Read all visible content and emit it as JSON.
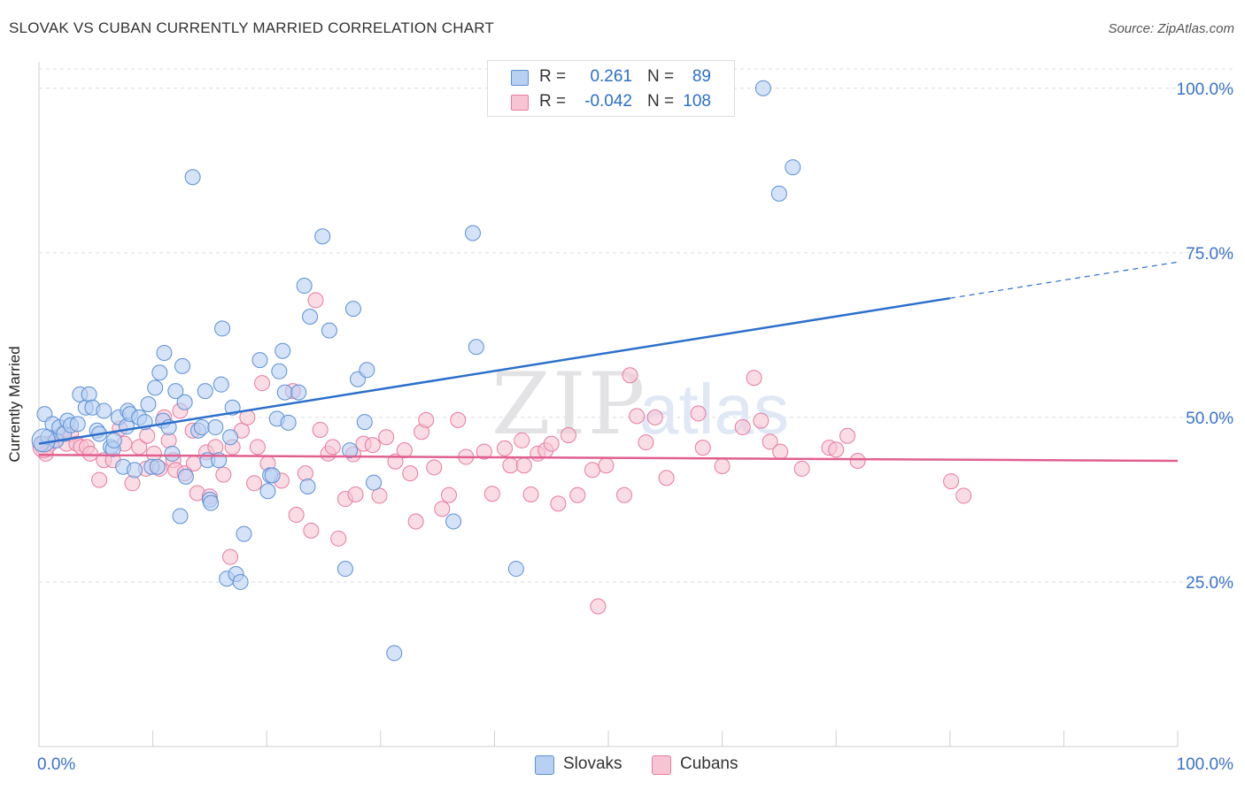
{
  "title": "SLOVAK VS CUBAN CURRENTLY MARRIED CORRELATION CHART",
  "source": "Source: ZipAtlas.com",
  "watermark": {
    "zip": "ZIP",
    "atlas": "atlas"
  },
  "legend": {
    "rows": [
      {
        "r_label": "R =",
        "r_value": "0.261",
        "n_label": "N =",
        "n_value": "89",
        "color": "#5b8fd6",
        "fill": "#b8d0f2"
      },
      {
        "r_label": "R =",
        "r_value": "-0.042",
        "n_label": "N =",
        "n_value": "108",
        "color": "#e87aa0",
        "fill": "#f7c4d4"
      }
    ]
  },
  "bottom_legend": [
    {
      "label": "Slovaks",
      "fill": "#b8d0f2",
      "color": "#5b8fd6"
    },
    {
      "label": "Cubans",
      "fill": "#f7c4d4",
      "color": "#e87aa0"
    }
  ],
  "chart_data": {
    "type": "scatter",
    "title": "SLOVAK VS CUBAN CURRENTLY MARRIED CORRELATION CHART",
    "xlabel": "",
    "ylabel": "Currently Married",
    "xlim": [
      0,
      100
    ],
    "ylim": [
      0,
      104
    ],
    "x_tick_labels": [
      "0.0%",
      "100.0%"
    ],
    "y_ticks": [
      25,
      50,
      75,
      100
    ],
    "y_tick_labels": [
      "25.0%",
      "50.0%",
      "75.0%",
      "100.0%"
    ],
    "grid": true,
    "legend_position": "top-center",
    "series": [
      {
        "name": "Slovaks",
        "color": "#5b8fd6",
        "fill": "#b8d0f2",
        "line_color": "#2b6fcb",
        "trend": {
          "x0": 0,
          "y0": 46,
          "x1": 80,
          "y1": 68.1,
          "dashed_to_x": 100,
          "dashed_to_y": 73.6
        },
        "points": [
          [
            0.2,
            46
          ],
          [
            0.5,
            50.5
          ],
          [
            0.8,
            47
          ],
          [
            1.2,
            49
          ],
          [
            1.5,
            46.5
          ],
          [
            1.8,
            48.5
          ],
          [
            2.2,
            47.5
          ],
          [
            2.5,
            49.5
          ],
          [
            2.8,
            48.8
          ],
          [
            3.4,
            49
          ],
          [
            3.6,
            53.5
          ],
          [
            4.1,
            51.5
          ],
          [
            4.4,
            53.5
          ],
          [
            4.7,
            51.5
          ],
          [
            5.1,
            48
          ],
          [
            5.3,
            47.5
          ],
          [
            5.7,
            51
          ],
          [
            6.3,
            45.5
          ],
          [
            6.5,
            45.2
          ],
          [
            6.6,
            46.5
          ],
          [
            7.0,
            50
          ],
          [
            7.4,
            42.5
          ],
          [
            7.7,
            48.6
          ],
          [
            7.8,
            51
          ],
          [
            8.0,
            50.5
          ],
          [
            8.4,
            42
          ],
          [
            8.8,
            50
          ],
          [
            9.3,
            49.3
          ],
          [
            9.6,
            52
          ],
          [
            9.9,
            42.5
          ],
          [
            10.2,
            54.5
          ],
          [
            10.4,
            42.5
          ],
          [
            10.6,
            56.8
          ],
          [
            10.9,
            49.5
          ],
          [
            11.0,
            59.8
          ],
          [
            11.4,
            48.5
          ],
          [
            11.7,
            44.5
          ],
          [
            12.0,
            54
          ],
          [
            12.4,
            35
          ],
          [
            12.6,
            57.8
          ],
          [
            12.8,
            52.3
          ],
          [
            12.9,
            41
          ],
          [
            13.5,
            86.5
          ],
          [
            14.0,
            48
          ],
          [
            14.3,
            48.5
          ],
          [
            14.6,
            54
          ],
          [
            14.8,
            43.5
          ],
          [
            15.0,
            37.5
          ],
          [
            15.1,
            37
          ],
          [
            15.5,
            48.5
          ],
          [
            15.8,
            43.5
          ],
          [
            16.0,
            55
          ],
          [
            16.1,
            63.5
          ],
          [
            16.5,
            25.5
          ],
          [
            16.8,
            47
          ],
          [
            17.0,
            51.5
          ],
          [
            17.3,
            26.2
          ],
          [
            17.7,
            25
          ],
          [
            18.0,
            32.3
          ],
          [
            19.4,
            58.7
          ],
          [
            20.1,
            38.8
          ],
          [
            20.3,
            41.2
          ],
          [
            20.5,
            41.2
          ],
          [
            20.9,
            49.8
          ],
          [
            21.1,
            57
          ],
          [
            21.4,
            60.1
          ],
          [
            21.6,
            53.8
          ],
          [
            21.9,
            49.2
          ],
          [
            22.8,
            53.8
          ],
          [
            23.3,
            70
          ],
          [
            23.6,
            39.5
          ],
          [
            23.8,
            65.3
          ],
          [
            24.9,
            77.5
          ],
          [
            25.5,
            63.2
          ],
          [
            26.9,
            27
          ],
          [
            27.3,
            45
          ],
          [
            27.6,
            66.5
          ],
          [
            28.0,
            55.8
          ],
          [
            28.6,
            49.3
          ],
          [
            28.8,
            57.2
          ],
          [
            29.4,
            40.1
          ],
          [
            31.2,
            14.2
          ],
          [
            36.4,
            34.2
          ],
          [
            38.1,
            78
          ],
          [
            38.4,
            60.7
          ],
          [
            41.9,
            27
          ],
          [
            65.0,
            84
          ],
          [
            66.2,
            88
          ],
          [
            63.6,
            100
          ]
        ]
      },
      {
        "name": "Cubans",
        "color": "#e87aa0",
        "fill": "#f7c4d4",
        "line_color": "#e0608f",
        "trend": {
          "x0": 0,
          "y0": 44.3,
          "x1": 100,
          "y1": 43.4
        },
        "points": [
          [
            0.3,
            45.5
          ],
          [
            0.6,
            44.5
          ],
          [
            1.0,
            46
          ],
          [
            1.5,
            46.5
          ],
          [
            2.0,
            47.5
          ],
          [
            2.4,
            46
          ],
          [
            2.8,
            47.5
          ],
          [
            3.3,
            46
          ],
          [
            3.7,
            45.5
          ],
          [
            4.2,
            45.5
          ],
          [
            4.5,
            44.5
          ],
          [
            5.3,
            40.5
          ],
          [
            5.7,
            43.5
          ],
          [
            6.5,
            43.5
          ],
          [
            7.1,
            48.3
          ],
          [
            7.5,
            46
          ],
          [
            8.2,
            40
          ],
          [
            8.8,
            45.5
          ],
          [
            9.4,
            42.2
          ],
          [
            9.5,
            47.2
          ],
          [
            10.1,
            44.5
          ],
          [
            10.6,
            42.2
          ],
          [
            11.0,
            50
          ],
          [
            11.4,
            46.5
          ],
          [
            11.8,
            43.5
          ],
          [
            12.0,
            42
          ],
          [
            12.4,
            51
          ],
          [
            12.8,
            41.5
          ],
          [
            13.5,
            48
          ],
          [
            13.6,
            43
          ],
          [
            13.9,
            38.5
          ],
          [
            14.7,
            44.7
          ],
          [
            15.0,
            38
          ],
          [
            15.5,
            45.5
          ],
          [
            16.2,
            41.3
          ],
          [
            16.8,
            28.8
          ],
          [
            17.0,
            45.5
          ],
          [
            17.8,
            48
          ],
          [
            18.3,
            50
          ],
          [
            18.9,
            40
          ],
          [
            19.2,
            45.5
          ],
          [
            19.6,
            55.2
          ],
          [
            20.1,
            43
          ],
          [
            21.3,
            40.4
          ],
          [
            22.3,
            54
          ],
          [
            22.6,
            35.2
          ],
          [
            23.4,
            41.5
          ],
          [
            23.9,
            32.8
          ],
          [
            24.3,
            67.8
          ],
          [
            24.7,
            48.1
          ],
          [
            25.4,
            44.5
          ],
          [
            25.8,
            45.5
          ],
          [
            26.3,
            31.6
          ],
          [
            26.9,
            37.6
          ],
          [
            27.6,
            44.4
          ],
          [
            27.8,
            38.3
          ],
          [
            28.5,
            46
          ],
          [
            29.3,
            45.8
          ],
          [
            29.9,
            38.1
          ],
          [
            30.5,
            47
          ],
          [
            31.3,
            43.3
          ],
          [
            32.1,
            45
          ],
          [
            32.6,
            41.5
          ],
          [
            33.1,
            34.2
          ],
          [
            33.6,
            47.8
          ],
          [
            34.0,
            49.6
          ],
          [
            34.7,
            42.4
          ],
          [
            35.4,
            36.1
          ],
          [
            36.0,
            38.2
          ],
          [
            36.8,
            49.6
          ],
          [
            37.5,
            44
          ],
          [
            39.1,
            44.8
          ],
          [
            39.8,
            38.4
          ],
          [
            40.9,
            45.3
          ],
          [
            41.4,
            42.7
          ],
          [
            42.4,
            46.5
          ],
          [
            42.6,
            42.7
          ],
          [
            43.2,
            38.3
          ],
          [
            43.8,
            44.5
          ],
          [
            44.5,
            45
          ],
          [
            45.0,
            46
          ],
          [
            45.6,
            36.9
          ],
          [
            46.5,
            47.3
          ],
          [
            47.3,
            38.2
          ],
          [
            48.6,
            42
          ],
          [
            49.1,
            21.3
          ],
          [
            49.8,
            42.7
          ],
          [
            51.4,
            38.2
          ],
          [
            51.9,
            56.4
          ],
          [
            52.5,
            50.2
          ],
          [
            53.3,
            46.2
          ],
          [
            54.1,
            50
          ],
          [
            55.1,
            40.8
          ],
          [
            57.9,
            50.6
          ],
          [
            58.3,
            45.4
          ],
          [
            60.0,
            42.6
          ],
          [
            61.8,
            48.5
          ],
          [
            62.8,
            56
          ],
          [
            63.4,
            49.5
          ],
          [
            64.2,
            46.3
          ],
          [
            65.1,
            44.8
          ],
          [
            67.0,
            42.2
          ],
          [
            69.4,
            45.4
          ],
          [
            70.0,
            45.1
          ],
          [
            71.0,
            47.2
          ],
          [
            71.9,
            43.4
          ],
          [
            80.1,
            40.3
          ],
          [
            81.2,
            38.1
          ]
        ]
      }
    ]
  }
}
